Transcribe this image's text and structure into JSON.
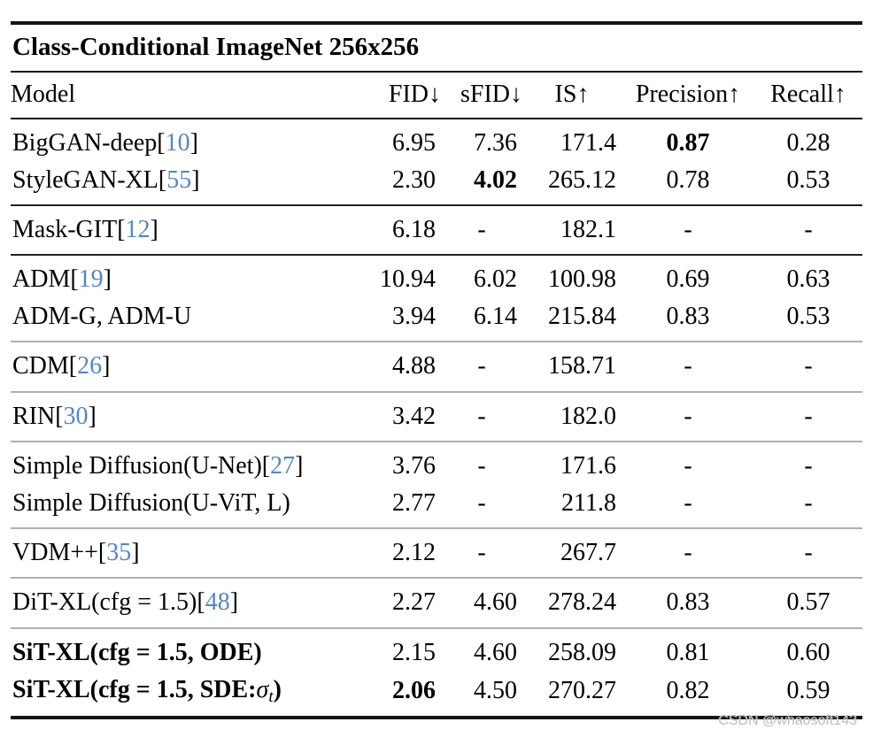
{
  "title": "Class-Conditional ImageNet 256x256",
  "watermark": "CSDN @whaosoft143",
  "colors": {
    "citation_blue": "#5585c5",
    "rule_dark": "#222222",
    "rule_light": "#b0b0b0",
    "watermark_gray": "#b9bdc2",
    "text": "#000000",
    "background": "#ffffff"
  },
  "columns": [
    {
      "label": "Model",
      "align_header": "left",
      "align_cells": "left",
      "key": "model"
    },
    {
      "label": "FID↓",
      "align_header": "right",
      "align_cells": "right",
      "key": "fid"
    },
    {
      "label": "sFID↓",
      "align_header": "right",
      "align_cells": "right",
      "key": "sfid"
    },
    {
      "label": "IS↑",
      "align_header": "center",
      "align_cells": "right",
      "key": "is"
    },
    {
      "label": "Precision↑",
      "align_header": "center",
      "align_cells": "center",
      "key": "precision"
    },
    {
      "label": "Recall↑",
      "align_header": "center",
      "align_cells": "center",
      "key": "recall"
    }
  ],
  "chart_data": {
    "type": "table",
    "title": "Class-Conditional ImageNet 256x256",
    "columns": [
      "Model",
      "FID",
      "sFID",
      "IS",
      "Precision",
      "Recall"
    ],
    "rows": [
      [
        "BigGAN-deep[10]",
        "6.95",
        "7.36",
        "171.4",
        "0.87",
        "0.28"
      ],
      [
        "StyleGAN-XL[55]",
        "2.30",
        "4.02",
        "265.12",
        "0.78",
        "0.53"
      ],
      [
        "Mask-GIT[12]",
        "6.18",
        "-",
        "182.1",
        "-",
        "-"
      ],
      [
        "ADM[19]",
        "10.94",
        "6.02",
        "100.98",
        "0.69",
        "0.63"
      ],
      [
        "ADM-G, ADM-U",
        "3.94",
        "6.14",
        "215.84",
        "0.83",
        "0.53"
      ],
      [
        "CDM[26]",
        "4.88",
        "-",
        "158.71",
        "-",
        "-"
      ],
      [
        "RIN[30]",
        "3.42",
        "-",
        "182.0",
        "-",
        "-"
      ],
      [
        "Simple Diffusion(U-Net)[27]",
        "3.76",
        "-",
        "171.6",
        "-",
        "-"
      ],
      [
        "Simple Diffusion(U-ViT, L)",
        "2.77",
        "-",
        "211.8",
        "-",
        "-"
      ],
      [
        "VDM++[35]",
        "2.12",
        "-",
        "267.7",
        "-",
        "-"
      ],
      [
        "DiT-XL(cfg = 1.5)[48]",
        "2.27",
        "4.60",
        "278.24",
        "0.83",
        "0.57"
      ],
      [
        "SiT-XL(cfg = 1.5, ODE)",
        "2.15",
        "4.60",
        "258.09",
        "0.81",
        "0.60"
      ],
      [
        "SiT-XL(cfg = 1.5, SDE:σ_t)",
        "2.06",
        "4.50",
        "270.27",
        "0.82",
        "0.59"
      ]
    ]
  },
  "groups": [
    {
      "rule": "none",
      "rows": [
        {
          "name": [
            {
              "t": "BigGAN-deep[",
              "s": "text"
            },
            {
              "t": "10",
              "s": "cite"
            },
            {
              "t": "]",
              "s": "text"
            }
          ],
          "name_bold": false,
          "cells": [
            {
              "t": "6.95",
              "b": false
            },
            {
              "t": "7.36",
              "b": false
            },
            {
              "t": "171.4",
              "b": false
            },
            {
              "t": "0.87",
              "b": true
            },
            {
              "t": "0.28",
              "b": false
            }
          ]
        },
        {
          "name": [
            {
              "t": "StyleGAN-XL[",
              "s": "text"
            },
            {
              "t": "55",
              "s": "cite"
            },
            {
              "t": "]",
              "s": "text"
            }
          ],
          "name_bold": false,
          "cells": [
            {
              "t": "2.30",
              "b": false
            },
            {
              "t": "4.02",
              "b": true
            },
            {
              "t": "265.12",
              "b": false
            },
            {
              "t": "0.78",
              "b": false
            },
            {
              "t": "0.53",
              "b": false
            }
          ]
        }
      ]
    },
    {
      "rule": "dark",
      "rows": [
        {
          "name": [
            {
              "t": "Mask-GIT[",
              "s": "text"
            },
            {
              "t": "12",
              "s": "cite"
            },
            {
              "t": "]",
              "s": "text"
            }
          ],
          "name_bold": false,
          "cells": [
            {
              "t": "6.18",
              "b": false
            },
            {
              "t": "-",
              "b": false
            },
            {
              "t": "182.1",
              "b": false
            },
            {
              "t": "-",
              "b": false
            },
            {
              "t": "-",
              "b": false
            }
          ]
        }
      ]
    },
    {
      "rule": "dark",
      "rows": [
        {
          "name": [
            {
              "t": "ADM[",
              "s": "text"
            },
            {
              "t": "19",
              "s": "cite"
            },
            {
              "t": "]",
              "s": "text"
            }
          ],
          "name_bold": false,
          "cells": [
            {
              "t": "10.94",
              "b": false
            },
            {
              "t": "6.02",
              "b": false
            },
            {
              "t": "100.98",
              "b": false
            },
            {
              "t": "0.69",
              "b": false
            },
            {
              "t": "0.63",
              "b": false
            }
          ]
        },
        {
          "name": [
            {
              "t": "ADM-G, ADM-U",
              "s": "text"
            }
          ],
          "name_bold": false,
          "cells": [
            {
              "t": "3.94",
              "b": false
            },
            {
              "t": "6.14",
              "b": false
            },
            {
              "t": "215.84",
              "b": false
            },
            {
              "t": "0.83",
              "b": false
            },
            {
              "t": "0.53",
              "b": false
            }
          ]
        }
      ]
    },
    {
      "rule": "light",
      "rows": [
        {
          "name": [
            {
              "t": "CDM[",
              "s": "text"
            },
            {
              "t": "26",
              "s": "cite"
            },
            {
              "t": "]",
              "s": "text"
            }
          ],
          "name_bold": false,
          "cells": [
            {
              "t": "4.88",
              "b": false
            },
            {
              "t": "-",
              "b": false
            },
            {
              "t": "158.71",
              "b": false
            },
            {
              "t": "-",
              "b": false
            },
            {
              "t": "-",
              "b": false
            }
          ]
        }
      ]
    },
    {
      "rule": "light",
      "rows": [
        {
          "name": [
            {
              "t": "RIN[",
              "s": "text"
            },
            {
              "t": "30",
              "s": "cite"
            },
            {
              "t": "]",
              "s": "text"
            }
          ],
          "name_bold": false,
          "cells": [
            {
              "t": "3.42",
              "b": false
            },
            {
              "t": "-",
              "b": false
            },
            {
              "t": "182.0",
              "b": false
            },
            {
              "t": "-",
              "b": false
            },
            {
              "t": "-",
              "b": false
            }
          ]
        }
      ]
    },
    {
      "rule": "light",
      "rows": [
        {
          "name": [
            {
              "t": "Simple Diffusion(U-Net)[",
              "s": "text"
            },
            {
              "t": "27",
              "s": "cite"
            },
            {
              "t": "]",
              "s": "text"
            }
          ],
          "name_bold": false,
          "cells": [
            {
              "t": "3.76",
              "b": false
            },
            {
              "t": "-",
              "b": false
            },
            {
              "t": "171.6",
              "b": false
            },
            {
              "t": "-",
              "b": false
            },
            {
              "t": "-",
              "b": false
            }
          ]
        },
        {
          "name": [
            {
              "t": "Simple Diffusion(U-ViT, L)",
              "s": "text"
            }
          ],
          "name_bold": false,
          "cells": [
            {
              "t": "2.77",
              "b": false
            },
            {
              "t": "-",
              "b": false
            },
            {
              "t": "211.8",
              "b": false
            },
            {
              "t": "-",
              "b": false
            },
            {
              "t": "-",
              "b": false
            }
          ]
        }
      ]
    },
    {
      "rule": "light",
      "rows": [
        {
          "name": [
            {
              "t": "VDM++[",
              "s": "text"
            },
            {
              "t": "35",
              "s": "cite"
            },
            {
              "t": "]",
              "s": "text"
            }
          ],
          "name_bold": false,
          "cells": [
            {
              "t": "2.12",
              "b": false
            },
            {
              "t": "-",
              "b": false
            },
            {
              "t": "267.7",
              "b": false
            },
            {
              "t": "-",
              "b": false
            },
            {
              "t": "-",
              "b": false
            }
          ]
        }
      ]
    },
    {
      "rule": "light",
      "rows": [
        {
          "name": [
            {
              "t": "DiT-XL(cfg = 1.5)[",
              "s": "text"
            },
            {
              "t": "48",
              "s": "cite"
            },
            {
              "t": "]",
              "s": "text"
            }
          ],
          "name_bold": false,
          "cells": [
            {
              "t": "2.27",
              "b": false
            },
            {
              "t": "4.60",
              "b": false
            },
            {
              "t": "278.24",
              "b": false
            },
            {
              "t": "0.83",
              "b": false
            },
            {
              "t": "0.57",
              "b": false
            }
          ]
        }
      ]
    },
    {
      "rule": "light",
      "rows": [
        {
          "name": [
            {
              "t": "SiT-XL(cfg = 1.5, ODE)",
              "s": "text"
            }
          ],
          "name_bold": true,
          "cells": [
            {
              "t": "2.15",
              "b": false
            },
            {
              "t": "4.60",
              "b": false
            },
            {
              "t": "258.09",
              "b": false
            },
            {
              "t": "0.81",
              "b": false
            },
            {
              "t": "0.60",
              "b": false
            }
          ]
        },
        {
          "name": [
            {
              "t": "SiT-XL(cfg = 1.5, SDE:",
              "s": "text"
            },
            {
              "t": "σ",
              "s": "math"
            },
            {
              "t": "t",
              "s": "sub"
            },
            {
              "t": ")",
              "s": "text"
            }
          ],
          "name_bold": true,
          "cells": [
            {
              "t": "2.06",
              "b": true
            },
            {
              "t": "4.50",
              "b": false
            },
            {
              "t": "270.27",
              "b": false
            },
            {
              "t": "0.82",
              "b": false
            },
            {
              "t": "0.59",
              "b": false
            }
          ]
        }
      ]
    }
  ]
}
